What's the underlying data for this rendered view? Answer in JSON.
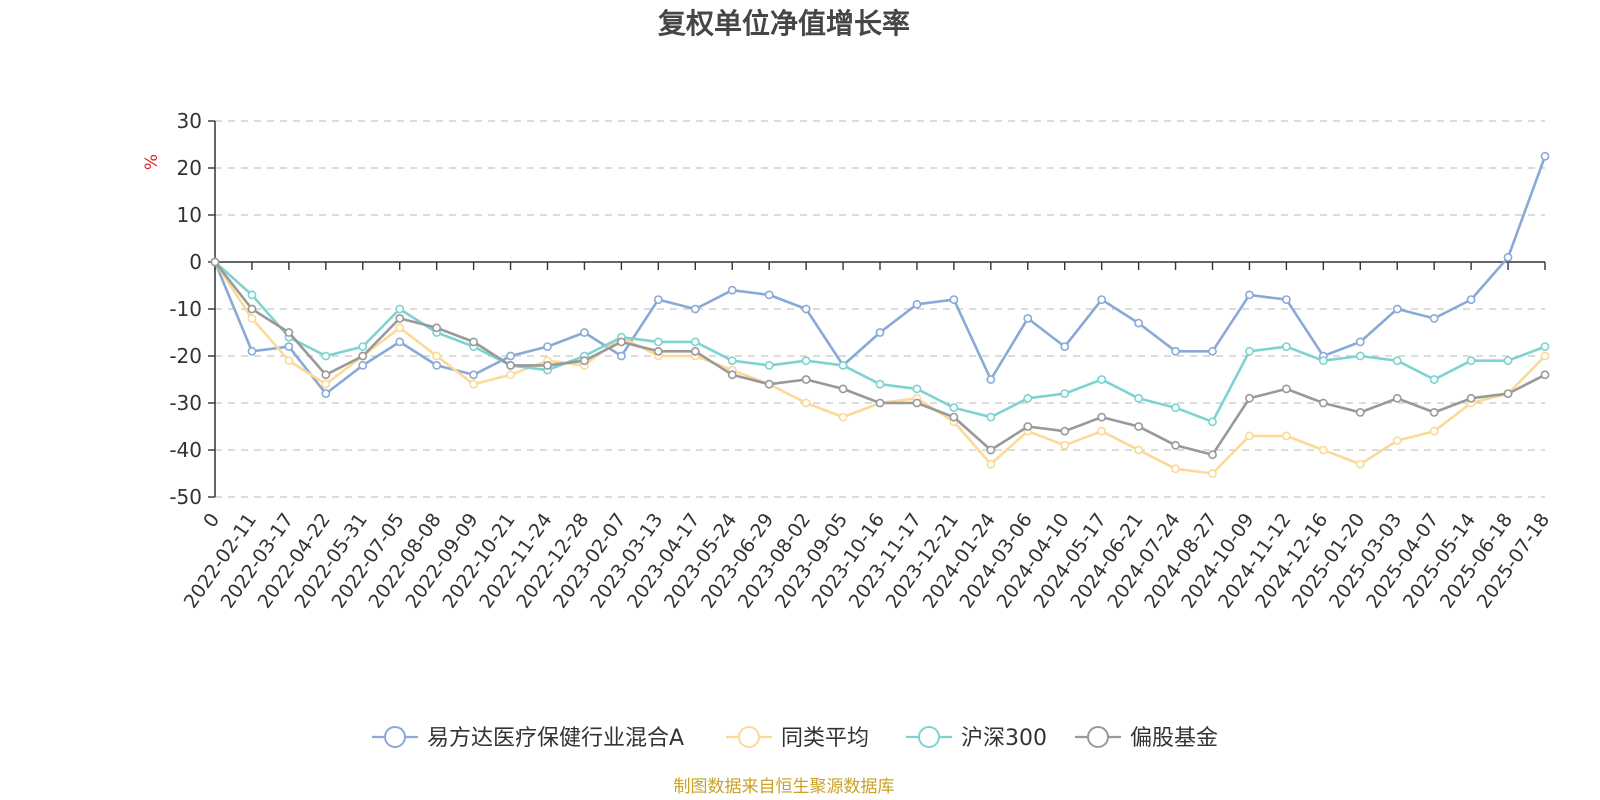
{
  "chart_data": {
    "type": "line",
    "title": "复权单位净值增长率",
    "ylabel": "%",
    "ylim": [
      -50,
      30
    ],
    "yticks": [
      30,
      20,
      10,
      0,
      -10,
      -20,
      -30,
      -40,
      -50
    ],
    "grid": true,
    "legend_position": "bottom",
    "x_tick_labels": [
      "0",
      "2022-02-11",
      "2022-03-17",
      "2022-04-22",
      "2022-05-31",
      "2022-07-05",
      "2022-08-08",
      "2022-09-09",
      "2022-10-21",
      "2022-11-24",
      "2022-12-28",
      "2023-02-07",
      "2023-03-13",
      "2023-04-17",
      "2023-05-24",
      "2023-06-29",
      "2023-08-02",
      "2023-09-05",
      "2023-10-16",
      "2023-11-17",
      "2023-12-21",
      "2024-01-24",
      "2024-03-06",
      "2024-04-10",
      "2024-05-17",
      "2024-06-21",
      "2024-07-24",
      "2024-08-27",
      "2024-10-09",
      "2024-11-12",
      "2024-12-16",
      "2025-01-20",
      "2025-03-03",
      "2025-04-07",
      "2025-05-14",
      "2025-06-18",
      "2025-07-18"
    ],
    "series": [
      {
        "name": "易方达医疗保健行业混合A",
        "color": "#8aa9d8",
        "values": [
          0,
          -19,
          -18,
          -28,
          -22,
          -17,
          -22,
          -24,
          -20,
          -18,
          -15,
          -20,
          -8,
          -10,
          -6,
          -7,
          -10,
          -22,
          -15,
          -9,
          -8,
          -25,
          -12,
          -18,
          -8,
          -13,
          -19,
          -19,
          -7,
          -8,
          -20,
          -17,
          -10,
          -12,
          -8,
          1,
          22.5
        ]
      },
      {
        "name": "同类平均",
        "color": "#fcd996",
        "values": [
          0,
          -12,
          -21,
          -26,
          -20,
          -14,
          -20,
          -26,
          -24,
          -21,
          -22,
          -16,
          -20,
          -20,
          -23,
          -26,
          -30,
          -33,
          -30,
          -29,
          -34,
          -43,
          -36,
          -39,
          -36,
          -40,
          -44,
          -45,
          -37,
          -37,
          -40,
          -43,
          -38,
          -36,
          -30,
          -28,
          -20
        ]
      },
      {
        "name": "沪深300",
        "color": "#7dd3d1",
        "values": [
          0,
          -7,
          -16,
          -20,
          -18,
          -10,
          -15,
          -18,
          -22,
          -23,
          -20,
          -16,
          -17,
          -17,
          -21,
          -22,
          -21,
          -22,
          -26,
          -27,
          -31,
          -33,
          -29,
          -28,
          -25,
          -29,
          -31,
          -34,
          -19,
          -18,
          -21,
          -20,
          -21,
          -25,
          -21,
          -21,
          -18
        ]
      },
      {
        "name": "偏股基金",
        "color": "#999999",
        "values": [
          0,
          -10,
          -15,
          -24,
          -20,
          -12,
          -14,
          -17,
          -22,
          -22,
          -21,
          -17,
          -19,
          -19,
          -24,
          -26,
          -25,
          -27,
          -30,
          -30,
          -33,
          -40,
          -35,
          -36,
          -33,
          -35,
          -39,
          -41,
          -29,
          -27,
          -30,
          -32,
          -29,
          -32,
          -29,
          -28,
          -24
        ]
      }
    ]
  },
  "legend": [
    {
      "name": "易方达医疗保健行业混合A",
      "color": "#8aa9d8"
    },
    {
      "name": "同类平均",
      "color": "#fcd996"
    },
    {
      "name": "沪深300",
      "color": "#7dd3d1"
    },
    {
      "name": "偏股基金",
      "color": "#999999"
    }
  ],
  "source_text": "制图数据来自恒生聚源数据库"
}
